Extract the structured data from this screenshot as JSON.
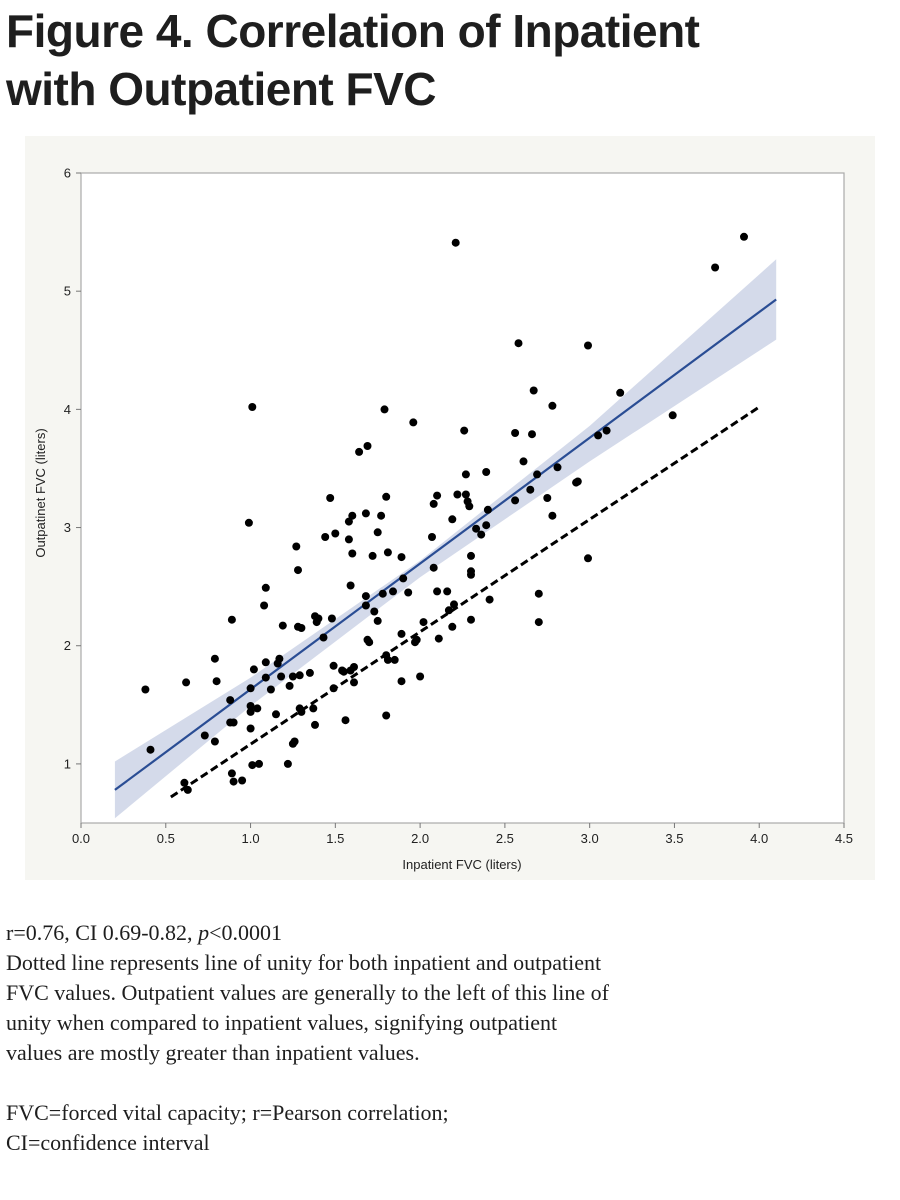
{
  "figure": {
    "title_line1": "Figure 4. Correlation of Inpatient",
    "title_line2": "with Outpatient FVC"
  },
  "caption": {
    "stats_prefix": "r=0.76, CI 0.69-0.82, ",
    "stats_p": "p",
    "stats_suffix": "<0.0001",
    "line1": "Dotted line represents line of unity for both inpatient and outpatient",
    "line2": "FVC values. Outpatient values are generally to the left of this line of",
    "line3": "unity when compared to inpatient values, signifying outpatient",
    "line4": "values are mostly greater than inpatient values.",
    "abbrev1": "FVC=forced vital capacity; r=Pearson correlation;",
    "abbrev2": "CI=confidence interval"
  },
  "chart_data": {
    "type": "scatter",
    "title": "",
    "xlabel": "Inpatient FVC (liters)",
    "ylabel": "Outpatinet FVC (liters)",
    "xlim": [
      0.0,
      4.5
    ],
    "ylim": [
      0.5,
      6.0
    ],
    "xticks": [
      "0.0",
      "0.5",
      "1.0",
      "1.5",
      "2.0",
      "2.5",
      "3.0",
      "3.5",
      "4.0",
      "4.5"
    ],
    "yticks": [
      "1",
      "2",
      "3",
      "4",
      "5",
      "6"
    ],
    "grid": false,
    "colors": {
      "points": "#000000",
      "fit_line": "#2a4d94",
      "confidence_band": "#ccd4e6",
      "unity_line": "#000000",
      "frame": "#a9a9a9"
    },
    "regression_line": {
      "x": [
        0.2,
        4.1
      ],
      "y": [
        0.78,
        4.93
      ]
    },
    "confidence_band": {
      "x": [
        0.2,
        1.0,
        2.0,
        3.0,
        4.1
      ],
      "lower": [
        0.54,
        1.49,
        2.58,
        3.56,
        4.59
      ],
      "upper": [
        1.02,
        1.73,
        2.72,
        3.86,
        5.27
      ]
    },
    "unity_line": {
      "x": [
        0.53,
        4.0
      ],
      "y": [
        0.72,
        4.02
      ],
      "style": "dashed"
    },
    "points": [
      [
        0.38,
        1.63
      ],
      [
        0.41,
        1.12
      ],
      [
        0.61,
        0.84
      ],
      [
        0.62,
        1.69
      ],
      [
        0.63,
        0.78
      ],
      [
        0.73,
        1.24
      ],
      [
        0.79,
        1.89
      ],
      [
        0.79,
        1.19
      ],
      [
        0.8,
        1.7
      ],
      [
        0.88,
        1.54
      ],
      [
        0.88,
        1.35
      ],
      [
        0.89,
        2.22
      ],
      [
        0.89,
        0.92
      ],
      [
        0.9,
        1.35
      ],
      [
        0.9,
        0.85
      ],
      [
        0.95,
        0.86
      ],
      [
        0.99,
        3.04
      ],
      [
        1.0,
        1.64
      ],
      [
        1.0,
        1.49
      ],
      [
        1.0,
        1.44
      ],
      [
        1.0,
        1.3
      ],
      [
        1.01,
        4.02
      ],
      [
        1.01,
        0.99
      ],
      [
        1.02,
        1.8
      ],
      [
        1.04,
        1.47
      ],
      [
        1.05,
        1.0
      ],
      [
        1.08,
        2.34
      ],
      [
        1.09,
        2.49
      ],
      [
        1.09,
        1.86
      ],
      [
        1.09,
        1.73
      ],
      [
        1.12,
        1.63
      ],
      [
        1.15,
        1.42
      ],
      [
        1.16,
        1.85
      ],
      [
        1.17,
        1.89
      ],
      [
        1.18,
        1.74
      ],
      [
        1.19,
        2.17
      ],
      [
        1.22,
        1.0
      ],
      [
        1.23,
        1.66
      ],
      [
        1.25,
        1.74
      ],
      [
        1.25,
        1.17
      ],
      [
        1.26,
        1.19
      ],
      [
        1.27,
        2.84
      ],
      [
        1.28,
        2.64
      ],
      [
        1.28,
        2.16
      ],
      [
        1.29,
        1.75
      ],
      [
        1.29,
        1.47
      ],
      [
        1.3,
        2.15
      ],
      [
        1.3,
        1.44
      ],
      [
        1.35,
        1.77
      ],
      [
        1.37,
        1.47
      ],
      [
        1.38,
        2.25
      ],
      [
        1.38,
        1.33
      ],
      [
        1.39,
        2.2
      ],
      [
        1.4,
        2.23
      ],
      [
        1.43,
        2.07
      ],
      [
        1.44,
        2.92
      ],
      [
        1.47,
        3.25
      ],
      [
        1.48,
        2.23
      ],
      [
        1.49,
        1.83
      ],
      [
        1.49,
        1.64
      ],
      [
        1.5,
        2.95
      ],
      [
        1.54,
        1.79
      ],
      [
        1.55,
        1.78
      ],
      [
        1.56,
        1.37
      ],
      [
        1.58,
        3.05
      ],
      [
        1.58,
        2.9
      ],
      [
        1.59,
        2.51
      ],
      [
        1.59,
        1.79
      ],
      [
        1.6,
        3.1
      ],
      [
        1.6,
        2.78
      ],
      [
        1.61,
        1.82
      ],
      [
        1.61,
        1.69
      ],
      [
        1.64,
        3.64
      ],
      [
        1.68,
        3.12
      ],
      [
        1.68,
        2.42
      ],
      [
        1.68,
        2.34
      ],
      [
        1.69,
        3.69
      ],
      [
        1.69,
        2.05
      ],
      [
        1.7,
        2.03
      ],
      [
        1.72,
        2.76
      ],
      [
        1.73,
        2.29
      ],
      [
        1.75,
        2.21
      ],
      [
        1.75,
        2.96
      ],
      [
        1.77,
        3.1
      ],
      [
        1.78,
        2.44
      ],
      [
        1.79,
        4.0
      ],
      [
        1.8,
        3.26
      ],
      [
        1.8,
        1.92
      ],
      [
        1.8,
        1.41
      ],
      [
        1.81,
        2.79
      ],
      [
        1.81,
        1.88
      ],
      [
        1.84,
        2.46
      ],
      [
        1.85,
        1.88
      ],
      [
        1.89,
        2.75
      ],
      [
        1.89,
        1.7
      ],
      [
        1.89,
        2.1
      ],
      [
        1.9,
        2.57
      ],
      [
        1.93,
        2.45
      ],
      [
        1.96,
        3.89
      ],
      [
        1.97,
        2.03
      ],
      [
        1.98,
        2.05
      ],
      [
        2.0,
        1.74
      ],
      [
        2.02,
        2.2
      ],
      [
        2.07,
        2.92
      ],
      [
        2.08,
        3.2
      ],
      [
        2.08,
        2.66
      ],
      [
        2.1,
        3.27
      ],
      [
        2.1,
        2.46
      ],
      [
        2.11,
        2.06
      ],
      [
        2.16,
        2.46
      ],
      [
        2.17,
        2.3
      ],
      [
        2.19,
        2.16
      ],
      [
        2.19,
        3.07
      ],
      [
        2.2,
        2.35
      ],
      [
        2.21,
        5.41
      ],
      [
        2.22,
        3.28
      ],
      [
        2.26,
        3.82
      ],
      [
        2.27,
        3.45
      ],
      [
        2.27,
        3.28
      ],
      [
        2.28,
        3.22
      ],
      [
        2.29,
        3.18
      ],
      [
        2.3,
        2.76
      ],
      [
        2.3,
        2.63
      ],
      [
        2.3,
        2.6
      ],
      [
        2.3,
        2.22
      ],
      [
        2.33,
        2.99
      ],
      [
        2.36,
        2.94
      ],
      [
        2.39,
        3.47
      ],
      [
        2.39,
        3.02
      ],
      [
        2.4,
        3.15
      ],
      [
        2.41,
        2.39
      ],
      [
        2.56,
        3.8
      ],
      [
        2.56,
        3.23
      ],
      [
        2.58,
        4.56
      ],
      [
        2.61,
        3.56
      ],
      [
        2.65,
        3.32
      ],
      [
        2.66,
        3.79
      ],
      [
        2.67,
        4.16
      ],
      [
        2.69,
        3.45
      ],
      [
        2.7,
        2.44
      ],
      [
        2.7,
        2.2
      ],
      [
        2.75,
        3.25
      ],
      [
        2.78,
        4.03
      ],
      [
        2.78,
        3.1
      ],
      [
        2.81,
        3.51
      ],
      [
        2.92,
        3.38
      ],
      [
        2.93,
        3.39
      ],
      [
        2.99,
        4.54
      ],
      [
        2.99,
        2.74
      ],
      [
        3.05,
        3.78
      ],
      [
        3.1,
        3.82
      ],
      [
        3.18,
        4.14
      ],
      [
        3.49,
        3.95
      ],
      [
        3.74,
        5.2
      ],
      [
        3.91,
        5.46
      ]
    ]
  }
}
